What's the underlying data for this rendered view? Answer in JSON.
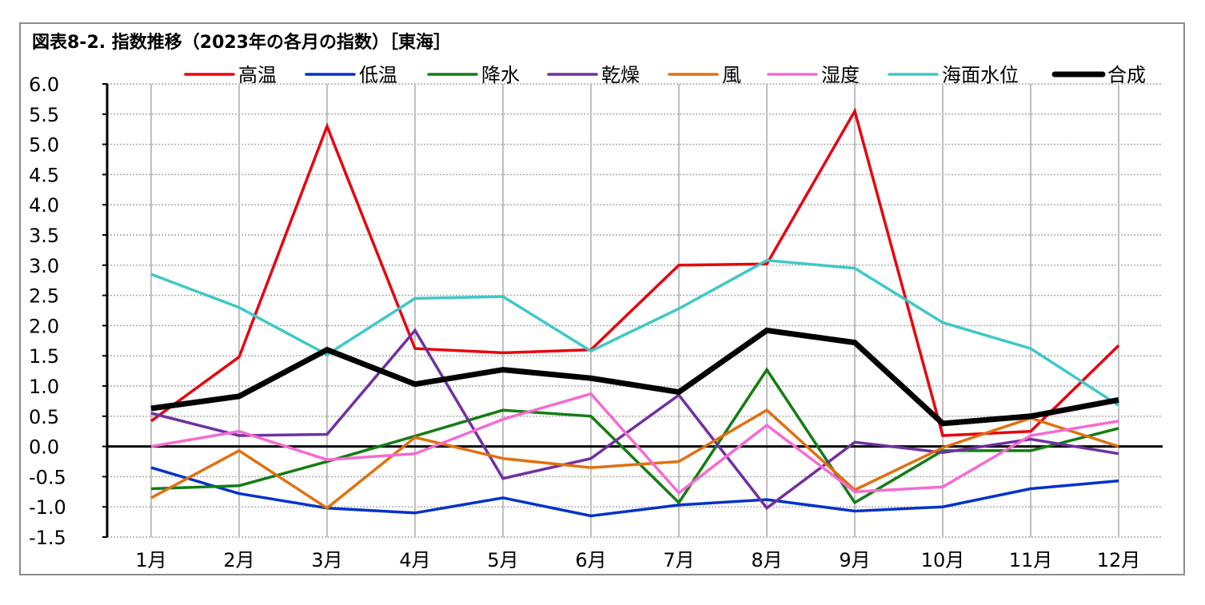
{
  "chart_data": {
    "type": "line",
    "title": "図表8-2. 指数推移（2023年の各月の指数）［東海］",
    "xlabel": "",
    "ylabel": "",
    "categories": [
      "1月",
      "2月",
      "3月",
      "4月",
      "5月",
      "6月",
      "7月",
      "8月",
      "9月",
      "10月",
      "11月",
      "12月"
    ],
    "ylim": [
      -1.5,
      6.0
    ],
    "yticks": [
      "6.0",
      "5.5",
      "5.0",
      "4.5",
      "4.0",
      "3.5",
      "3.0",
      "2.5",
      "2.0",
      "1.5",
      "1.0",
      "0.5",
      "0.0",
      "-0.5",
      "-1.0",
      "-1.5"
    ],
    "grid": true,
    "legend_position": "top",
    "series": [
      {
        "name": "高温",
        "color": "#e8000e",
        "width": 3.5,
        "values": [
          0.42,
          1.48,
          5.3,
          1.62,
          1.55,
          1.6,
          3.0,
          3.02,
          5.55,
          0.18,
          0.25,
          1.67
        ]
      },
      {
        "name": "低温",
        "color": "#0032c8",
        "width": 3.5,
        "values": [
          -0.35,
          -0.78,
          -1.02,
          -1.1,
          -0.85,
          -1.15,
          -0.97,
          -0.88,
          -1.07,
          -1.0,
          -0.7,
          -0.57
        ]
      },
      {
        "name": "降水",
        "color": "#127d12",
        "width": 3.5,
        "values": [
          -0.7,
          -0.65,
          -0.25,
          0.17,
          0.6,
          0.5,
          -0.93,
          1.27,
          -0.93,
          -0.07,
          -0.07,
          0.3
        ]
      },
      {
        "name": "乾燥",
        "color": "#7030a0",
        "width": 3.5,
        "values": [
          0.55,
          0.18,
          0.2,
          1.92,
          -0.53,
          -0.2,
          0.85,
          -1.02,
          0.07,
          -0.1,
          0.12,
          -0.12
        ]
      },
      {
        "name": "風",
        "color": "#e07010",
        "width": 3.5,
        "values": [
          -0.85,
          -0.07,
          -1.02,
          0.15,
          -0.2,
          -0.35,
          -0.25,
          0.6,
          -0.72,
          -0.02,
          0.47,
          0.0
        ]
      },
      {
        "name": "湿度",
        "color": "#f66ad2",
        "width": 3.5,
        "values": [
          0.0,
          0.25,
          -0.22,
          -0.12,
          0.45,
          0.87,
          -0.77,
          0.35,
          -0.75,
          -0.67,
          0.18,
          0.42
        ]
      },
      {
        "name": "海面水位",
        "color": "#3ec8c8",
        "width": 3.5,
        "values": [
          2.85,
          2.3,
          1.52,
          2.45,
          2.48,
          1.58,
          2.28,
          3.08,
          2.95,
          2.05,
          1.62,
          0.68
        ]
      },
      {
        "name": "合成",
        "color": "#000000",
        "width": 7,
        "values": [
          0.63,
          0.83,
          1.6,
          1.03,
          1.27,
          1.13,
          0.9,
          1.92,
          1.72,
          0.38,
          0.5,
          0.77
        ]
      }
    ]
  }
}
